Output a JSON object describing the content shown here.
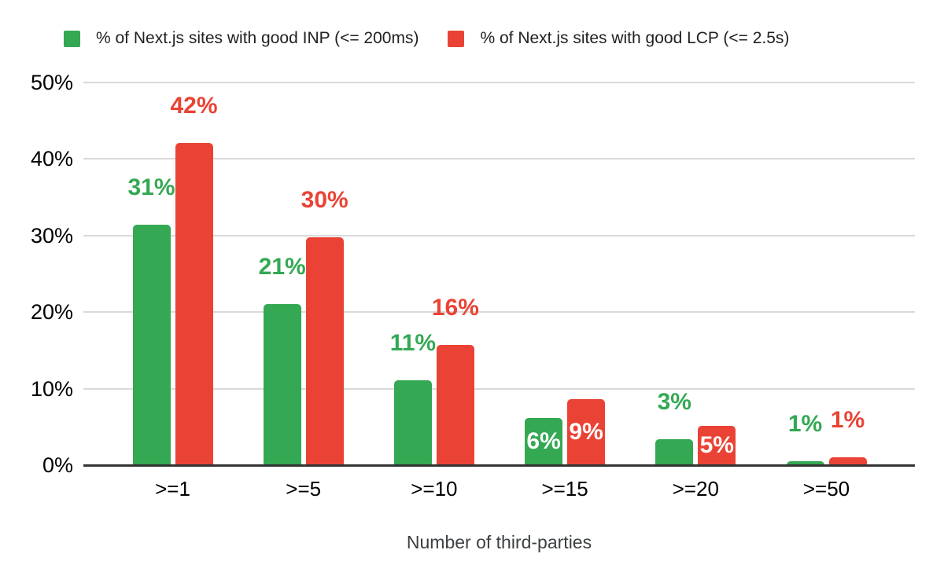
{
  "legend": {
    "items": [
      {
        "label": "% of Next.js sites with good INP (<= 200ms)",
        "color": "#34a853"
      },
      {
        "label": "% of Next.js sites with good LCP (<= 2.5s)",
        "color": "#ea4335"
      }
    ]
  },
  "chart_data": {
    "type": "bar",
    "title": "",
    "xlabel": "Number of third-parties",
    "ylabel": "",
    "categories": [
      ">=1",
      ">=5",
      ">=10",
      ">=15",
      ">=20",
      ">=50"
    ],
    "series": [
      {
        "name": "% of Next.js sites with good INP (<= 200ms)",
        "color": "#34a853",
        "values": [
          31.4,
          21.0,
          11.1,
          6.2,
          3.4,
          0.5
        ],
        "labels": [
          "31%",
          "21%",
          "11%",
          "6%",
          "3%",
          "1%"
        ],
        "label_placement": [
          "above",
          "above",
          "above",
          "inside",
          "above",
          "above"
        ]
      },
      {
        "name": "% of Next.js sites with good LCP (<= 2.5s)",
        "color": "#ea4335",
        "values": [
          42.1,
          29.8,
          15.7,
          8.6,
          5.1,
          1.0
        ],
        "labels": [
          "42%",
          "30%",
          "16%",
          "9%",
          "5%",
          "1%"
        ],
        "label_placement": [
          "above",
          "above",
          "above",
          "inside",
          "inside",
          "above"
        ]
      }
    ],
    "y_axis": {
      "ticks": [
        0,
        10,
        20,
        30,
        40,
        50
      ],
      "tick_labels": [
        "0%",
        "10%",
        "20%",
        "30%",
        "40%",
        "50%"
      ],
      "ylim": [
        0,
        50
      ],
      "grid": true
    },
    "legend_position": "top"
  },
  "colors": {
    "background": "#ffffff",
    "gridline": "#d9d9d9",
    "baseline": "#333333",
    "tick_text": "#000000",
    "axis_title_text": "#3c4043",
    "legend_text": "#212121",
    "inside_label_text": "#ffffff"
  }
}
